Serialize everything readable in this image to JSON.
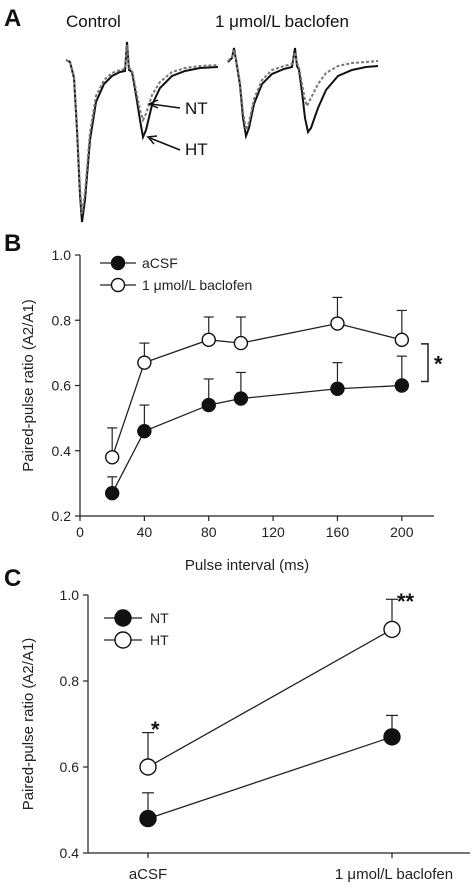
{
  "panels": {
    "a": {
      "label": "A",
      "titles": [
        "Control",
        "1 μmol/L baclofen"
      ],
      "annotations": [
        "NT",
        "HT"
      ]
    },
    "b": {
      "label": "B"
    },
    "c": {
      "label": "C"
    }
  },
  "chart_data": [
    {
      "type": "line",
      "panel": "B",
      "xlabel": "Pulse interval (ms)",
      "ylabel": "Paired-pulse ratio (A2/A1)",
      "xlim": [
        0,
        220
      ],
      "ylim": [
        0.2,
        1.0
      ],
      "x_ticks": [
        0,
        40,
        80,
        120,
        160,
        200
      ],
      "y_ticks": [
        0.2,
        0.4,
        0.6,
        0.8,
        1.0
      ],
      "y_tick_labels": [
        "0.2",
        "0.4",
        "0.6",
        "0.8",
        "1.0"
      ],
      "legend_position": "top-left",
      "x": [
        20,
        40,
        80,
        100,
        160,
        200
      ],
      "series": [
        {
          "name": "aCSF",
          "marker": "filled",
          "values": [
            0.27,
            0.46,
            0.54,
            0.56,
            0.59,
            0.6
          ],
          "errors": [
            0.05,
            0.08,
            0.08,
            0.08,
            0.08,
            0.09
          ]
        },
        {
          "name": "1 μmol/L baclofen",
          "marker": "open",
          "values": [
            0.38,
            0.67,
            0.74,
            0.73,
            0.79,
            0.74
          ],
          "errors": [
            0.09,
            0.06,
            0.07,
            0.08,
            0.08,
            0.09
          ]
        }
      ],
      "significance": "*"
    },
    {
      "type": "line",
      "panel": "C",
      "ylabel": "Paired-pulse ratio (A2/A1)",
      "categories": [
        "aCSF",
        "1 μmol/L baclofen"
      ],
      "ylim": [
        0.4,
        1.0
      ],
      "y_ticks": [
        0.4,
        0.6,
        0.8,
        1.0
      ],
      "y_tick_labels": [
        "0.4",
        "0.6",
        "0.8",
        "1.0"
      ],
      "legend_position": "top-left",
      "series": [
        {
          "name": "NT",
          "marker": "filled",
          "values": [
            0.48,
            0.67
          ],
          "errors": [
            0.06,
            0.05
          ]
        },
        {
          "name": "HT",
          "marker": "open",
          "values": [
            0.6,
            0.92
          ],
          "errors": [
            0.08,
            0.07
          ]
        }
      ],
      "annotations": [
        "*",
        "**"
      ]
    }
  ]
}
